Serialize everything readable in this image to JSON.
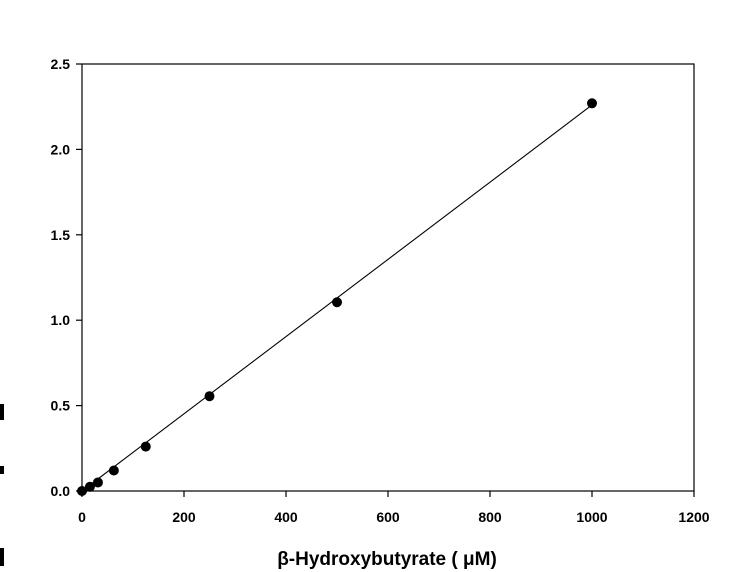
{
  "chart_data": {
    "type": "scatter",
    "title": "",
    "xlabel": "β-Hydroxybutyrate (  μM)",
    "ylabel": "",
    "xlim": [
      0,
      1200
    ],
    "ylim": [
      0,
      2.5
    ],
    "xticks": [
      "0",
      "200",
      "400",
      "600",
      "800",
      "1000",
      "1200"
    ],
    "yticks": [
      "0.0",
      "0.5",
      "1.0",
      "1.5",
      "2.0",
      "2.5"
    ],
    "grid": false,
    "legend": "none",
    "point_color": "#000000",
    "line_color": "#000000",
    "series": [
      {
        "x": [
          0,
          15.6,
          31.25,
          62.5,
          125,
          250,
          500,
          1000
        ],
        "y": [
          0.0,
          0.025,
          0.05,
          0.12,
          0.26,
          0.555,
          1.105,
          2.27
        ]
      }
    ],
    "fit_line": {
      "x": [
        0,
        1000
      ],
      "y": [
        0.0,
        2.26
      ]
    }
  }
}
